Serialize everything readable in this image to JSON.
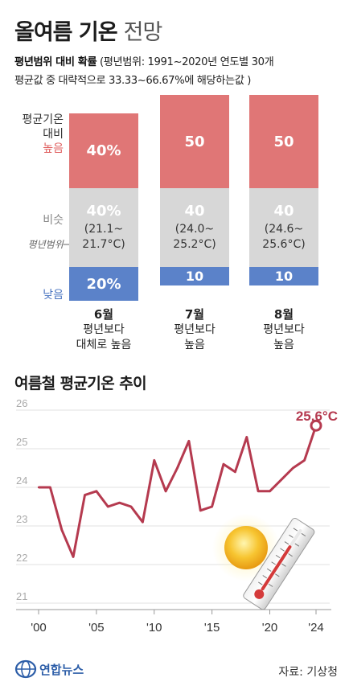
{
  "title": {
    "main": "올여름 기온",
    "sub": "전망"
  },
  "subtitle": {
    "bold": "평년범위 대비 확률",
    "line1": " (평년범위: 1991~2020년 연도별 30개",
    "line2": "평균값 중 대략적으로 33.33~66.67%에 해당하는값 )"
  },
  "row_labels": {
    "high_1": "평균기온",
    "high_2": "대비",
    "high_3": "높음",
    "mid": "비슷",
    "range": "평년범위",
    "low": "낮음"
  },
  "colors": {
    "high": "#e07676",
    "mid": "#d7d7d7",
    "low": "#5b82c9",
    "line": "#b53a4f"
  },
  "chart_data": [
    {
      "type": "bar",
      "categories": [
        "6월",
        "7월",
        "8월"
      ],
      "series": [
        {
          "name": "높음",
          "values": [
            40,
            50,
            50
          ]
        },
        {
          "name": "비슷",
          "values": [
            40,
            40,
            40
          ]
        },
        {
          "name": "낮음",
          "values": [
            20,
            10,
            10
          ]
        }
      ],
      "value_labels": {
        "high": [
          "40%",
          "50",
          "50"
        ],
        "mid": [
          "40%",
          "40",
          "40"
        ],
        "low": [
          "20%",
          "10",
          "10"
        ]
      },
      "ranges": [
        [
          "(21.1~",
          "21.7°C)"
        ],
        [
          "(24.0~",
          "25.2°C)"
        ],
        [
          "(24.6~",
          "25.6°C)"
        ]
      ],
      "outlook": [
        [
          "평년보다",
          "대체로 높음"
        ],
        [
          "평년보다",
          "높음"
        ],
        [
          "평년보다",
          "높음"
        ]
      ]
    },
    {
      "type": "line",
      "title": "여름철 평균기온 추이",
      "x": [
        2000,
        2001,
        2002,
        2003,
        2004,
        2005,
        2006,
        2007,
        2008,
        2009,
        2010,
        2011,
        2012,
        2013,
        2014,
        2015,
        2016,
        2017,
        2018,
        2019,
        2020,
        2021,
        2022,
        2023,
        2024
      ],
      "y": [
        24.0,
        24.0,
        22.9,
        22.2,
        23.8,
        23.9,
        23.5,
        23.6,
        23.5,
        23.1,
        24.7,
        23.9,
        24.5,
        25.2,
        23.4,
        23.5,
        24.6,
        24.4,
        25.3,
        23.9,
        23.9,
        24.2,
        24.5,
        24.7,
        25.6
      ],
      "yticks": [
        "21",
        "22",
        "23",
        "24",
        "25",
        "26"
      ],
      "ylim": [
        21,
        26
      ],
      "xticks": [
        "'00",
        "'05",
        "'10",
        "'15",
        "'20",
        "'24"
      ],
      "xtick_values": [
        2000,
        2005,
        2010,
        2015,
        2020,
        2024
      ],
      "annotation": "25.6°C"
    }
  ],
  "footer": {
    "brand": "연합뉴스",
    "source": "자료: 기상청"
  }
}
